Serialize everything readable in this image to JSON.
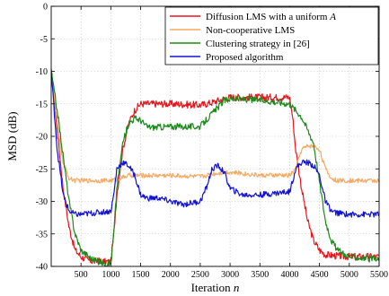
{
  "chart_data": {
    "type": "line",
    "xlabel": "Iteration",
    "xlabel_var": "n",
    "ylabel": "MSD (dB)",
    "xlim": [
      0,
      5500
    ],
    "ylim": [
      -40,
      0
    ],
    "xticks": [
      500,
      1000,
      1500,
      2000,
      2500,
      3000,
      3500,
      4000,
      4500,
      5000,
      5500
    ],
    "yticks": [
      0,
      -5,
      -10,
      -15,
      -20,
      -25,
      -30,
      -35,
      -40
    ],
    "grid": true,
    "legend_position": "top-right",
    "series": [
      {
        "name": "Diffusion LMS with a uniform",
        "name_var": "A",
        "color": "#e8141b",
        "x": [
          0,
          100,
          200,
          300,
          400,
          500,
          600,
          700,
          800,
          900,
          950,
          1000,
          1050,
          1100,
          1200,
          1300,
          1400,
          1500,
          1700,
          2000,
          2500,
          2700,
          2900,
          3000,
          3500,
          4000,
          4050,
          4100,
          4200,
          4300,
          4400,
          4500,
          4600,
          4800,
          5000,
          5500
        ],
        "y": [
          -10,
          -19,
          -28,
          -34,
          -37.5,
          -38.5,
          -39,
          -39.2,
          -39.2,
          -39.3,
          -39.3,
          -39.3,
          -35,
          -29,
          -22,
          -18,
          -16,
          -15,
          -15,
          -15,
          -15.2,
          -14.8,
          -14.2,
          -14,
          -14,
          -14,
          -17,
          -22,
          -28,
          -33,
          -36,
          -37.5,
          -38.2,
          -38.4,
          -38.5,
          -38.5
        ]
      },
      {
        "name": "Non-cooperative LMS",
        "color": "#f5a962",
        "x": [
          0,
          100,
          200,
          300,
          400,
          500,
          1000,
          1100,
          1300,
          1500,
          1800,
          2000,
          2500,
          2700,
          2900,
          3000,
          3300,
          3500,
          4000,
          4100,
          4200,
          4300,
          4400,
          4500,
          4600,
          4700,
          4800,
          5000,
          5500
        ],
        "y": [
          -10,
          -18,
          -24,
          -26.5,
          -26.8,
          -26.8,
          -26.8,
          -26.6,
          -26,
          -26,
          -26,
          -26,
          -26.2,
          -25.8,
          -25.5,
          -25.5,
          -25.8,
          -26,
          -26,
          -25,
          -22,
          -21.5,
          -21.5,
          -22,
          -25,
          -26.5,
          -26.8,
          -26.8,
          -26.8
        ]
      },
      {
        "name": "Clustering strategy in [26]",
        "color": "#1a8a1a",
        "x": [
          0,
          100,
          200,
          300,
          400,
          500,
          700,
          900,
          1000,
          1050,
          1100,
          1200,
          1300,
          1400,
          1500,
          1600,
          1700,
          2000,
          2500,
          2700,
          2900,
          3000,
          3500,
          4000,
          4200,
          4400,
          4500,
          4600,
          4700,
          4800,
          5000,
          5500
        ],
        "y": [
          -10,
          -16,
          -23,
          -30,
          -35,
          -37.5,
          -39,
          -39.5,
          -39.6,
          -35,
          -28,
          -21,
          -18,
          -17.2,
          -17.5,
          -18.5,
          -18.6,
          -18.5,
          -18.5,
          -16.5,
          -14.5,
          -14.2,
          -14.4,
          -15,
          -17,
          -21,
          -27,
          -33,
          -36,
          -37.5,
          -38.5,
          -39
        ]
      },
      {
        "name": "Proposed algorithm",
        "color": "#1212d6",
        "x": [
          0,
          100,
          200,
          300,
          400,
          500,
          1000,
          1050,
          1100,
          1200,
          1300,
          1400,
          1500,
          1600,
          1700,
          1800,
          2000,
          2200,
          2500,
          2600,
          2700,
          2800,
          2900,
          3000,
          3200,
          3500,
          4000,
          4100,
          4200,
          4300,
          4400,
          4500,
          4600,
          4700,
          4800,
          5000,
          5500
        ],
        "y": [
          -10,
          -22,
          -29,
          -31.5,
          -32,
          -32,
          -31.5,
          -29,
          -25,
          -24,
          -24.5,
          -26,
          -29,
          -29.5,
          -29.5,
          -29.5,
          -30,
          -30.5,
          -30,
          -28,
          -25,
          -24.5,
          -25.5,
          -28,
          -29,
          -29,
          -28.5,
          -25,
          -24,
          -24,
          -24.5,
          -26,
          -30,
          -31.5,
          -31.8,
          -32,
          -32
        ]
      }
    ]
  }
}
